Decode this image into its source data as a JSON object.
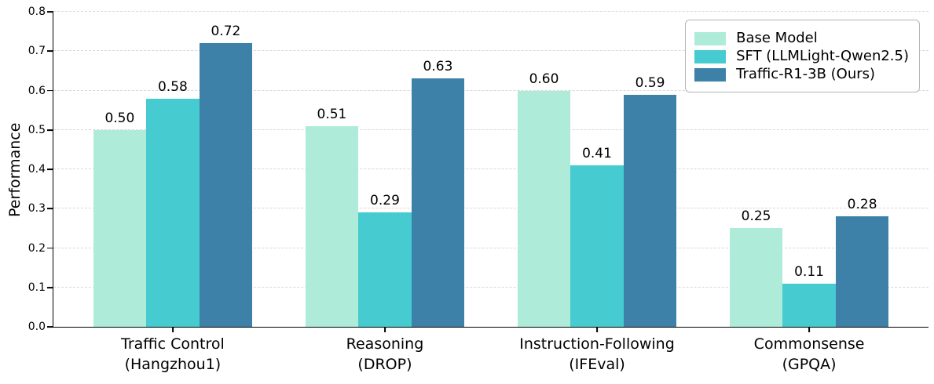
{
  "chart_data": {
    "type": "bar",
    "title": "",
    "xlabel": "",
    "ylabel": "Performance",
    "ylim": [
      0.0,
      0.8
    ],
    "yticks": [
      0.0,
      0.1,
      0.2,
      0.3,
      0.4,
      0.5,
      0.6,
      0.7,
      0.8
    ],
    "grid": {
      "axis": "y",
      "style": "dashed",
      "color": "#d8d8d8",
      "zero_line": "solid-axis"
    },
    "legend_position": "upper-right-inside",
    "categories": [
      "Traffic Control\n(Hangzhou1)",
      "Reasoning\n(DROP)",
      "Instruction-Following\n(IFEval)",
      "Commonsense\n(GPQA)"
    ],
    "series": [
      {
        "name": "Base Model",
        "color": "#aeecd9",
        "values": [
          0.5,
          0.51,
          0.6,
          0.25
        ]
      },
      {
        "name": "SFT (LLMLight-Qwen2.5)",
        "color": "#45cbd0",
        "values": [
          0.58,
          0.29,
          0.41,
          0.11
        ]
      },
      {
        "name": "Traffic-R1-3B (Ours)",
        "color": "#3d80a8",
        "values": [
          0.72,
          0.63,
          0.59,
          0.28
        ]
      }
    ],
    "bar_value_labels": [
      [
        "0.50",
        "0.51",
        "0.60",
        "0.25"
      ],
      [
        "0.58",
        "0.29",
        "0.41",
        "0.11"
      ],
      [
        "0.72",
        "0.63",
        "0.59",
        "0.28"
      ]
    ],
    "colors": {
      "axis": "#000000",
      "text": "#000000",
      "grid": "#d8d8d8",
      "legend_border": "#b4b4b4",
      "background": "#ffffff"
    }
  }
}
